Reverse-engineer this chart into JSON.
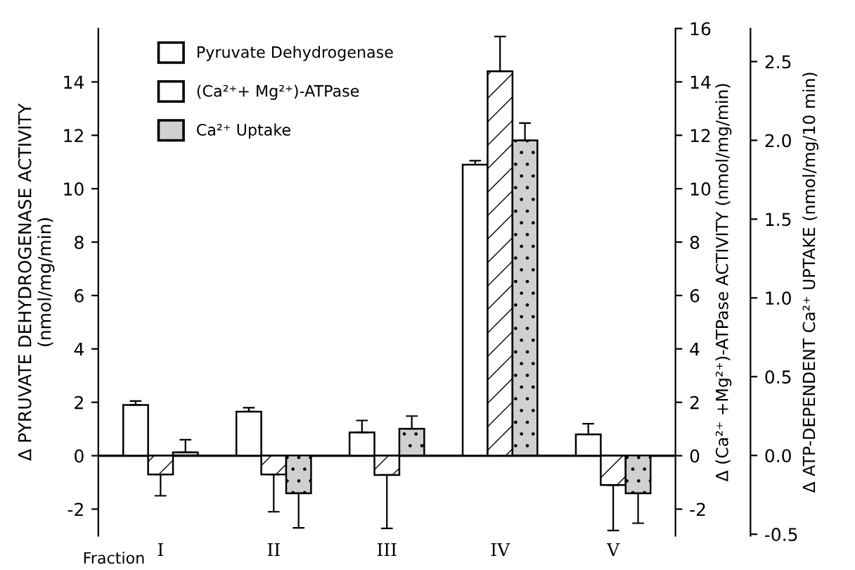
{
  "chart_data": {
    "type": "bar",
    "categories": [
      "I",
      "II",
      "III",
      "IV",
      "V"
    ],
    "ylabel": "Δ PYRUVATE DEHYDROGENASE ACTIVITY\n(nmol/mg/min)",
    "y2label": "Δ (Ca²⁺ +Mg²⁺)-ATPase ACTIVITY (nmol/mg/min)",
    "y3label": "Δ ATP-DEPENDENT Ca²⁺ UPTAKE (nmol/mg/10 min)",
    "annotations": [
      "Fraction"
    ],
    "ylim": [
      -3,
      16
    ],
    "yticks": [
      -2,
      0,
      2,
      4,
      6,
      8,
      10,
      12,
      14
    ],
    "y2lim": [
      -3,
      16
    ],
    "y2ticks": [
      -2,
      0,
      2,
      4,
      6,
      8,
      10,
      12,
      14,
      16
    ],
    "y3lim": [
      -0.51,
      2.71
    ],
    "y3ticks": [
      {
        "value": -0.5,
        "label": "-0.5"
      },
      {
        "value": 0,
        "label": "0.0"
      },
      {
        "value": 0.5,
        "label": "0.5"
      },
      {
        "value": 1,
        "label": "1.0"
      },
      {
        "value": 1.5,
        "label": "1.5"
      },
      {
        "value": 2,
        "label": "2.0"
      },
      {
        "value": 2.5,
        "label": "2.5"
      }
    ],
    "ref_lines": [
      {
        "axis": "y",
        "value": 0,
        "color": "#000000"
      }
    ],
    "legend": "top left",
    "series": [
      {
        "name": "Pyruvate Dehydrogenase",
        "color": "#ffffff",
        "values": [
          1.9,
          1.65,
          0.87,
          10.9,
          0.8
        ],
        "errors": [
          0.15,
          0.15,
          0.45,
          0.15,
          0.4
        ]
      },
      {
        "name": "(Ca²⁺+ Mg²⁺)-ATPase",
        "color": "#ffffff",
        "axis": "y2",
        "values": [
          -0.7,
          -0.7,
          -0.72,
          14.4,
          -1.1
        ],
        "errors": [
          0.8,
          1.4,
          2.0,
          1.3,
          1.7
        ]
      },
      {
        "name": "Ca²⁺ Uptake",
        "color": "#d0d0d0",
        "axis": "y3",
        "values": [
          0.02,
          -0.24,
          0.17,
          2.0,
          -0.24
        ],
        "errors": [
          0.08,
          0.22,
          0.08,
          0.11,
          0.19
        ]
      }
    ]
  }
}
